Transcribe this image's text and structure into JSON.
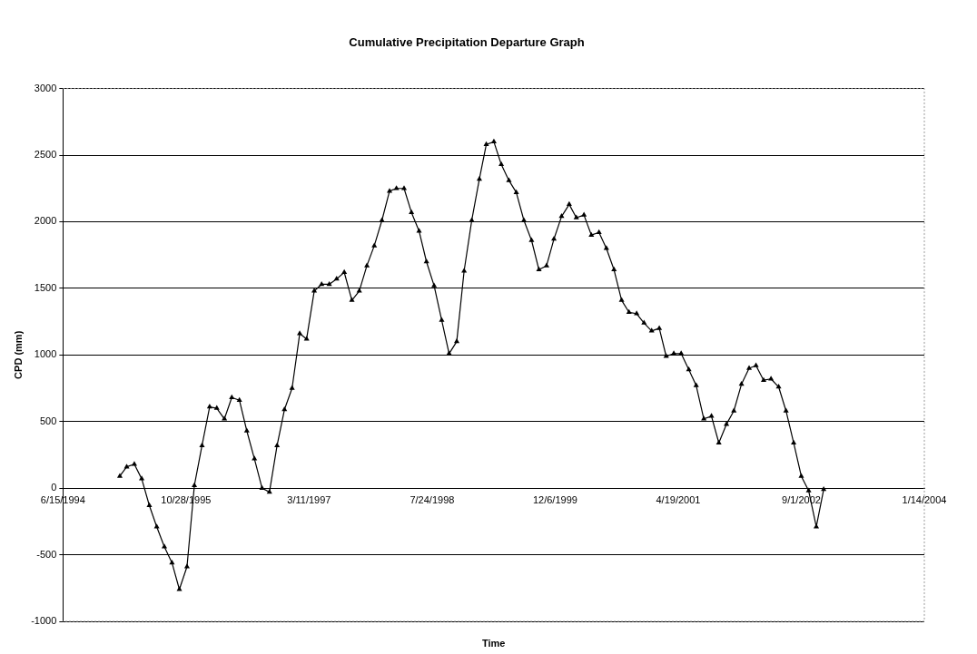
{
  "chart_data": {
    "type": "line",
    "title": "Cumulative Precipitation Departure Graph",
    "xlabel": "Time",
    "ylabel": "CPD (mm)",
    "x": [
      "1995-02",
      "1995-03",
      "1995-04",
      "1995-05",
      "1995-06",
      "1995-07",
      "1995-08",
      "1995-09",
      "1995-10",
      "1995-11",
      "1995-12",
      "1996-01",
      "1996-02",
      "1996-03",
      "1996-04",
      "1996-05",
      "1996-06",
      "1996-07",
      "1996-08",
      "1996-09",
      "1996-10",
      "1996-11",
      "1996-12",
      "1997-01",
      "1997-02",
      "1997-03",
      "1997-04",
      "1997-05",
      "1997-06",
      "1997-07",
      "1997-08",
      "1997-09",
      "1997-10",
      "1997-11",
      "1997-12",
      "1998-01",
      "1998-02",
      "1998-03",
      "1998-04",
      "1998-05",
      "1998-06",
      "1998-07",
      "1998-08",
      "1998-09",
      "1998-10",
      "1998-11",
      "1998-12",
      "1999-01",
      "1999-02",
      "1999-03",
      "1999-04",
      "1999-05",
      "1999-06",
      "1999-07",
      "1999-08",
      "1999-09",
      "1999-10",
      "1999-11",
      "1999-12",
      "2000-01",
      "2000-02",
      "2000-03",
      "2000-04",
      "2000-05",
      "2000-06",
      "2000-07",
      "2000-08",
      "2000-09",
      "2000-10",
      "2000-11",
      "2000-12",
      "2001-01",
      "2001-02",
      "2001-03",
      "2001-04",
      "2001-05",
      "2001-06",
      "2001-07",
      "2001-08",
      "2001-09",
      "2001-10",
      "2001-11",
      "2001-12",
      "2002-01",
      "2002-02",
      "2002-03",
      "2002-04",
      "2002-05",
      "2002-06",
      "2002-07",
      "2002-08",
      "2002-09",
      "2002-10",
      "2002-11",
      "2002-12"
    ],
    "series": [
      {
        "color": "#000000",
        "values": [
          90,
          160,
          180,
          70,
          -130,
          -290,
          -440,
          -560,
          -760,
          -590,
          20,
          320,
          610,
          600,
          520,
          680,
          660,
          430,
          220,
          0,
          -30,
          320,
          590,
          750,
          1160,
          1120,
          1480,
          1530,
          1530,
          1570,
          1620,
          1410,
          1480,
          1670,
          1820,
          2010,
          2230,
          2250,
          2250,
          2070,
          1930,
          1700,
          1520,
          1260,
          1010,
          1100,
          1630,
          2010,
          2320,
          2580,
          2600,
          2430,
          2310,
          2220,
          2010,
          1860,
          1640,
          1670,
          1870,
          2040,
          2130,
          2030,
          2050,
          1900,
          1920,
          1800,
          1640,
          1410,
          1320,
          1310,
          1240,
          1180,
          1200,
          990,
          1010,
          1010,
          890,
          770,
          520,
          540,
          340,
          480,
          580,
          780,
          900,
          920,
          810,
          820,
          760,
          580,
          340,
          90,
          -20,
          -290,
          -10
        ]
      }
    ],
    "xlim": [
      "1994-06-15",
      "2004-01-14"
    ],
    "xticks": [
      {
        "value": "1994-06-15",
        "label": "6/15/1994"
      },
      {
        "value": "1995-10-28",
        "label": "10/28/1995"
      },
      {
        "value": "1997-03-11",
        "label": "3/11/1997"
      },
      {
        "value": "1998-07-24",
        "label": "7/24/1998"
      },
      {
        "value": "1999-12-06",
        "label": "12/6/1999"
      },
      {
        "value": "2001-04-19",
        "label": "4/19/2001"
      },
      {
        "value": "2002-09-01",
        "label": "9/1/2002"
      },
      {
        "value": "2004-01-14",
        "label": "1/14/2004"
      }
    ],
    "ylim": [
      -1000,
      3000
    ],
    "yticks": [
      -1000,
      -500,
      0,
      500,
      1000,
      1500,
      2000,
      2500,
      3000
    ],
    "grid": "y",
    "legend": false,
    "marker": "triangle",
    "line_style": "solid"
  }
}
